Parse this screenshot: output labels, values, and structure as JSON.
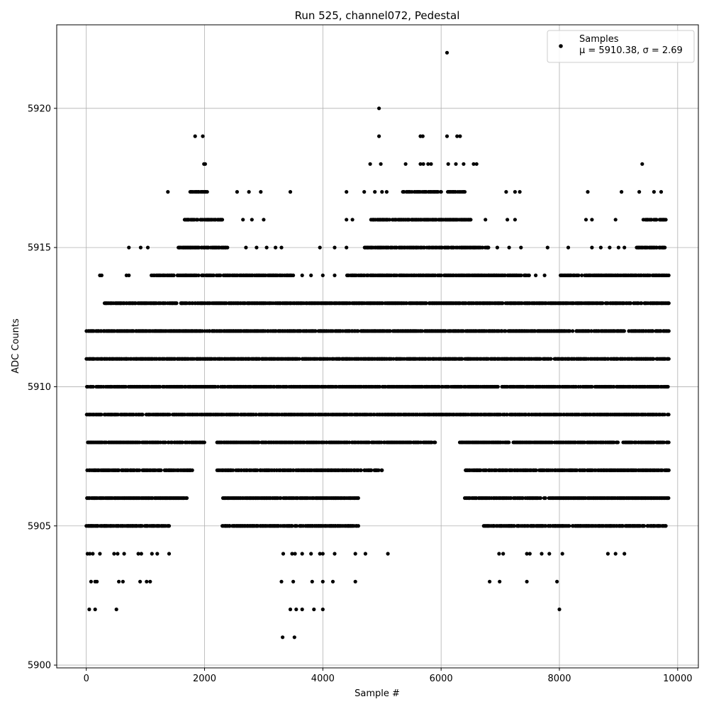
{
  "chart_data": {
    "type": "scatter",
    "title": "Run 525, channel072, Pedestal",
    "xlabel": "Sample #",
    "ylabel": "ADC Counts",
    "xlim": [
      -500,
      10350
    ],
    "ylim": [
      5899.9,
      5923.0
    ],
    "xticks": [
      0,
      2000,
      4000,
      6000,
      8000,
      10000
    ],
    "yticks": [
      5900,
      5905,
      5910,
      5915,
      5920
    ],
    "xtick_labels": [
      "0",
      "2000",
      "4000",
      "6000",
      "8000",
      "10000"
    ],
    "ytick_labels": [
      "5900",
      "5905",
      "5910",
      "5915",
      "5920"
    ],
    "grid": true,
    "legend_position": "top-right",
    "series": [
      {
        "name": "Samples",
        "color": "#000000",
        "marker": "circle",
        "stats_label": "μ = 5910.38, σ = 2.69",
        "mean": 5910.38,
        "std": 2.69,
        "sample_count": 9840,
        "dense_levels": [
          {
            "y": 5905,
            "x_ranges": [
              [
                0,
                1400
              ],
              [
                2300,
                4600
              ],
              [
                6700,
                9800
              ]
            ]
          },
          {
            "y": 5906,
            "x_ranges": [
              [
                0,
                1700
              ],
              [
                2300,
                4600
              ],
              [
                6400,
                9850
              ]
            ]
          },
          {
            "y": 5907,
            "x_ranges": [
              [
                0,
                1800
              ],
              [
                2200,
                5000
              ],
              [
                6400,
                9850
              ]
            ]
          },
          {
            "y": 5908,
            "x_ranges": [
              [
                0,
                2000
              ],
              [
                2200,
                5900
              ],
              [
                6300,
                9850
              ]
            ]
          },
          {
            "y": 5909,
            "x_ranges": [
              [
                0,
                9850
              ]
            ]
          },
          {
            "y": 5910,
            "x_ranges": [
              [
                0,
                9850
              ]
            ]
          },
          {
            "y": 5911,
            "x_ranges": [
              [
                0,
                9850
              ]
            ]
          },
          {
            "y": 5912,
            "x_ranges": [
              [
                0,
                9850
              ]
            ]
          },
          {
            "y": 5913,
            "x_ranges": [
              [
                300,
                9850
              ]
            ]
          },
          {
            "y": 5914,
            "x_ranges": [
              [
                1100,
                3500
              ],
              [
                4400,
                7500
              ],
              [
                8000,
                9850
              ]
            ]
          },
          {
            "y": 5915,
            "x_ranges": [
              [
                1550,
                2400
              ],
              [
                4700,
                6800
              ],
              [
                9300,
                9800
              ]
            ]
          },
          {
            "y": 5916,
            "x_ranges": [
              [
                1650,
                2300
              ],
              [
                4800,
                6500
              ],
              [
                9450,
                9800
              ]
            ]
          },
          {
            "y": 5917,
            "x_ranges": [
              [
                1750,
                2050
              ],
              [
                5300,
                6000
              ],
              [
                6100,
                6400
              ]
            ]
          }
        ],
        "points": [
          [
            6100,
            5922
          ],
          [
            4950,
            5920
          ],
          [
            1840,
            5919
          ],
          [
            1970,
            5919
          ],
          [
            4950,
            5919
          ],
          [
            5650,
            5919
          ],
          [
            5690,
            5919
          ],
          [
            6100,
            5919
          ],
          [
            6270,
            5919
          ],
          [
            6320,
            5919
          ],
          [
            1990,
            5918
          ],
          [
            2010,
            5918
          ],
          [
            4800,
            5918
          ],
          [
            4980,
            5918
          ],
          [
            5400,
            5918
          ],
          [
            5650,
            5918
          ],
          [
            5700,
            5918
          ],
          [
            5780,
            5918
          ],
          [
            5830,
            5918
          ],
          [
            6120,
            5918
          ],
          [
            6250,
            5918
          ],
          [
            6380,
            5918
          ],
          [
            6550,
            5918
          ],
          [
            6600,
            5918
          ],
          [
            9400,
            5918
          ],
          [
            1380,
            5917
          ],
          [
            2550,
            5917
          ],
          [
            2750,
            5917
          ],
          [
            2950,
            5917
          ],
          [
            3450,
            5917
          ],
          [
            4400,
            5917
          ],
          [
            4700,
            5917
          ],
          [
            4880,
            5917
          ],
          [
            5000,
            5917
          ],
          [
            5080,
            5917
          ],
          [
            7100,
            5917
          ],
          [
            7250,
            5917
          ],
          [
            7330,
            5917
          ],
          [
            8480,
            5917
          ],
          [
            9050,
            5917
          ],
          [
            9350,
            5917
          ],
          [
            9600,
            5917
          ],
          [
            9720,
            5917
          ],
          [
            2650,
            5916
          ],
          [
            2800,
            5916
          ],
          [
            3000,
            5916
          ],
          [
            4400,
            5916
          ],
          [
            4500,
            5916
          ],
          [
            6750,
            5916
          ],
          [
            7120,
            5916
          ],
          [
            7250,
            5916
          ],
          [
            8450,
            5916
          ],
          [
            8550,
            5916
          ],
          [
            8950,
            5916
          ],
          [
            9420,
            5916
          ],
          [
            720,
            5915
          ],
          [
            920,
            5915
          ],
          [
            1040,
            5915
          ],
          [
            2700,
            5915
          ],
          [
            2880,
            5915
          ],
          [
            3050,
            5915
          ],
          [
            3200,
            5915
          ],
          [
            3300,
            5915
          ],
          [
            3950,
            5915
          ],
          [
            4200,
            5915
          ],
          [
            4400,
            5915
          ],
          [
            6950,
            5915
          ],
          [
            7150,
            5915
          ],
          [
            7350,
            5915
          ],
          [
            7800,
            5915
          ],
          [
            8150,
            5915
          ],
          [
            8550,
            5915
          ],
          [
            8700,
            5915
          ],
          [
            8850,
            5915
          ],
          [
            9000,
            5915
          ],
          [
            9100,
            5915
          ],
          [
            230,
            5914
          ],
          [
            260,
            5914
          ],
          [
            680,
            5914
          ],
          [
            720,
            5914
          ],
          [
            3650,
            5914
          ],
          [
            3800,
            5914
          ],
          [
            4000,
            5914
          ],
          [
            4200,
            5914
          ],
          [
            7600,
            5914
          ],
          [
            7750,
            5914
          ],
          [
            20,
            5904
          ],
          [
            60,
            5904
          ],
          [
            110,
            5904
          ],
          [
            230,
            5904
          ],
          [
            470,
            5904
          ],
          [
            530,
            5904
          ],
          [
            640,
            5904
          ],
          [
            880,
            5904
          ],
          [
            930,
            5904
          ],
          [
            1110,
            5904
          ],
          [
            1200,
            5904
          ],
          [
            1400,
            5904
          ],
          [
            3330,
            5904
          ],
          [
            3480,
            5904
          ],
          [
            3530,
            5904
          ],
          [
            3650,
            5904
          ],
          [
            3800,
            5904
          ],
          [
            3950,
            5904
          ],
          [
            4000,
            5904
          ],
          [
            4200,
            5904
          ],
          [
            4550,
            5904
          ],
          [
            4720,
            5904
          ],
          [
            5100,
            5904
          ],
          [
            6980,
            5904
          ],
          [
            7050,
            5904
          ],
          [
            7450,
            5904
          ],
          [
            7500,
            5904
          ],
          [
            7700,
            5904
          ],
          [
            7830,
            5904
          ],
          [
            8050,
            5904
          ],
          [
            8820,
            5904
          ],
          [
            8950,
            5904
          ],
          [
            9100,
            5904
          ],
          [
            80,
            5903
          ],
          [
            150,
            5903
          ],
          [
            180,
            5903
          ],
          [
            550,
            5903
          ],
          [
            620,
            5903
          ],
          [
            910,
            5903
          ],
          [
            1020,
            5903
          ],
          [
            1080,
            5903
          ],
          [
            3300,
            5903
          ],
          [
            3500,
            5903
          ],
          [
            3820,
            5903
          ],
          [
            4000,
            5903
          ],
          [
            4170,
            5903
          ],
          [
            4550,
            5903
          ],
          [
            6820,
            5903
          ],
          [
            6990,
            5903
          ],
          [
            7450,
            5903
          ],
          [
            7960,
            5903
          ],
          [
            50,
            5902
          ],
          [
            150,
            5902
          ],
          [
            510,
            5902
          ],
          [
            3450,
            5902
          ],
          [
            3550,
            5902
          ],
          [
            3650,
            5902
          ],
          [
            3850,
            5902
          ],
          [
            4000,
            5902
          ],
          [
            8000,
            5902
          ],
          [
            3320,
            5901
          ],
          [
            3520,
            5901
          ]
        ]
      }
    ]
  }
}
